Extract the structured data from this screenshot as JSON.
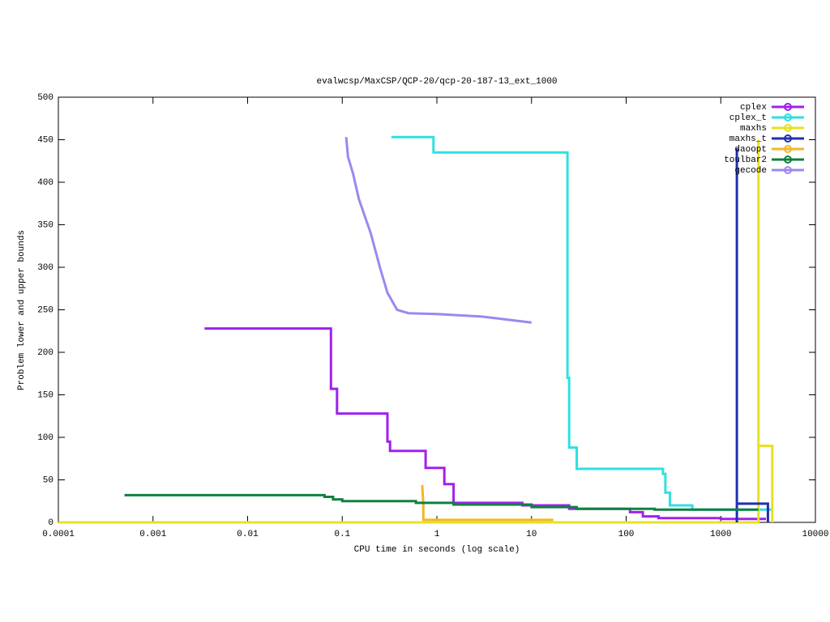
{
  "chart_data": {
    "type": "line",
    "title": "evalwcsp/MaxCSP/QCP-20/qcp-20-187-13_ext_1000",
    "x_label": "CPU time in seconds (log scale)",
    "y_label": "Problem lower and upper bounds",
    "log_x": true,
    "legend_position": "top-right",
    "xlim": [
      0.0001,
      10000
    ],
    "xticks": [
      0.0001,
      0.001,
      0.01,
      0.1,
      1,
      10,
      100,
      1000,
      10000
    ],
    "ylim": [
      0,
      500
    ],
    "yticks": [
      0,
      50,
      100,
      150,
      200,
      250,
      300,
      350,
      400,
      450,
      500
    ],
    "series": [
      {
        "name": "cplex",
        "color": "#a020f0",
        "x": [
          0.0035,
          0.076,
          0.076,
          0.088,
          0.088,
          0.3,
          0.3,
          0.32,
          0.32,
          0.76,
          0.76,
          1.2,
          1.2,
          1.5,
          1.5,
          8,
          8,
          25,
          25,
          110,
          110,
          150,
          150,
          220,
          220,
          1000,
          1000,
          3000
        ],
        "values": [
          228,
          228,
          157,
          157,
          128,
          128,
          95,
          95,
          84,
          84,
          64,
          64,
          45,
          45,
          23,
          23,
          20,
          20,
          16,
          16,
          12,
          12,
          7,
          7,
          5,
          5,
          4,
          4
        ]
      },
      {
        "name": "cplex_t",
        "color": "#30e0e0",
        "x": [
          0.33,
          0.92,
          0.92,
          24,
          24,
          25,
          25,
          30,
          30,
          245,
          245,
          260,
          260,
          290,
          290,
          500,
          500,
          3500
        ],
        "values": [
          453,
          453,
          435,
          435,
          170,
          170,
          88,
          88,
          63,
          63,
          57,
          57,
          35,
          35,
          20,
          20,
          15,
          15
        ]
      },
      {
        "name": "maxhs",
        "color": "#e8e020",
        "x": [
          0.0001,
          2500,
          2500,
          2500,
          3500,
          3500
        ],
        "values": [
          0,
          0,
          450,
          90,
          90,
          0
        ]
      },
      {
        "name": "maxhs_t",
        "color": "#2030b0",
        "x": [
          1480,
          1480,
          1480,
          3150,
          3150
        ],
        "values": [
          0,
          440,
          22,
          22,
          0
        ]
      },
      {
        "name": "daoopt",
        "color": "#f0b828",
        "x": [
          0.7,
          0.72,
          0.72,
          17
        ],
        "values": [
          44,
          20,
          3,
          3
        ]
      },
      {
        "name": "toulbar2",
        "color": "#108040",
        "x": [
          0.0005,
          0.065,
          0.065,
          0.08,
          0.08,
          0.1,
          0.1,
          0.6,
          0.6,
          1.5,
          1.5,
          10,
          10,
          30,
          30,
          200,
          200,
          2500
        ],
        "values": [
          32,
          32,
          30,
          30,
          27,
          27,
          25,
          25,
          23,
          23,
          21,
          21,
          18,
          18,
          16,
          16,
          15,
          15
        ]
      },
      {
        "name": "gecode",
        "color": "#9a88f0",
        "x": [
          0.11,
          0.115,
          0.13,
          0.15,
          0.2,
          0.25,
          0.3,
          0.38,
          0.5,
          1,
          3,
          6,
          10
        ],
        "values": [
          453,
          430,
          410,
          380,
          340,
          300,
          270,
          250,
          246,
          245,
          242,
          238,
          235
        ]
      }
    ]
  }
}
